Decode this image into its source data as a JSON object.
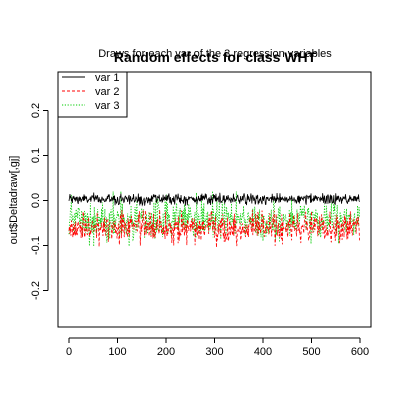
{
  "chart_data": {
    "type": "line",
    "title": "Random effects for class WHT",
    "subtitle": "Draws for each var of the 3 regression variables",
    "xlabel": "",
    "ylabel": "out$Deltadraw[,gj]",
    "xlim": [
      0,
      600
    ],
    "ylim": [
      -0.25,
      0.25
    ],
    "x_ticks": [
      0,
      100,
      200,
      300,
      400,
      500,
      600
    ],
    "y_ticks": [
      -0.2,
      -0.1,
      0.0,
      0.1,
      0.2
    ],
    "x_tick_labels": [
      "0",
      "100",
      "200",
      "300",
      "400",
      "500",
      "600"
    ],
    "y_tick_labels": [
      "-0.2",
      "-0.1",
      "0.0",
      "0.1",
      "0.2"
    ],
    "legend_position": "top-left",
    "grid": false,
    "n_draws": 600,
    "series": [
      {
        "name": "var 1",
        "color": "#000000",
        "line_style": "solid",
        "mean": 0.003,
        "spread": 0.006,
        "min": -0.012,
        "max": 0.018
      },
      {
        "name": "var 2",
        "color": "#ff0000",
        "line_style": "dashed",
        "mean": -0.06,
        "spread": 0.018,
        "min": -0.115,
        "max": -0.02
      },
      {
        "name": "var 3",
        "color": "#00cc00",
        "line_style": "dotted",
        "mean": -0.045,
        "spread": 0.022,
        "min": -0.105,
        "max": 0.06
      }
    ]
  }
}
